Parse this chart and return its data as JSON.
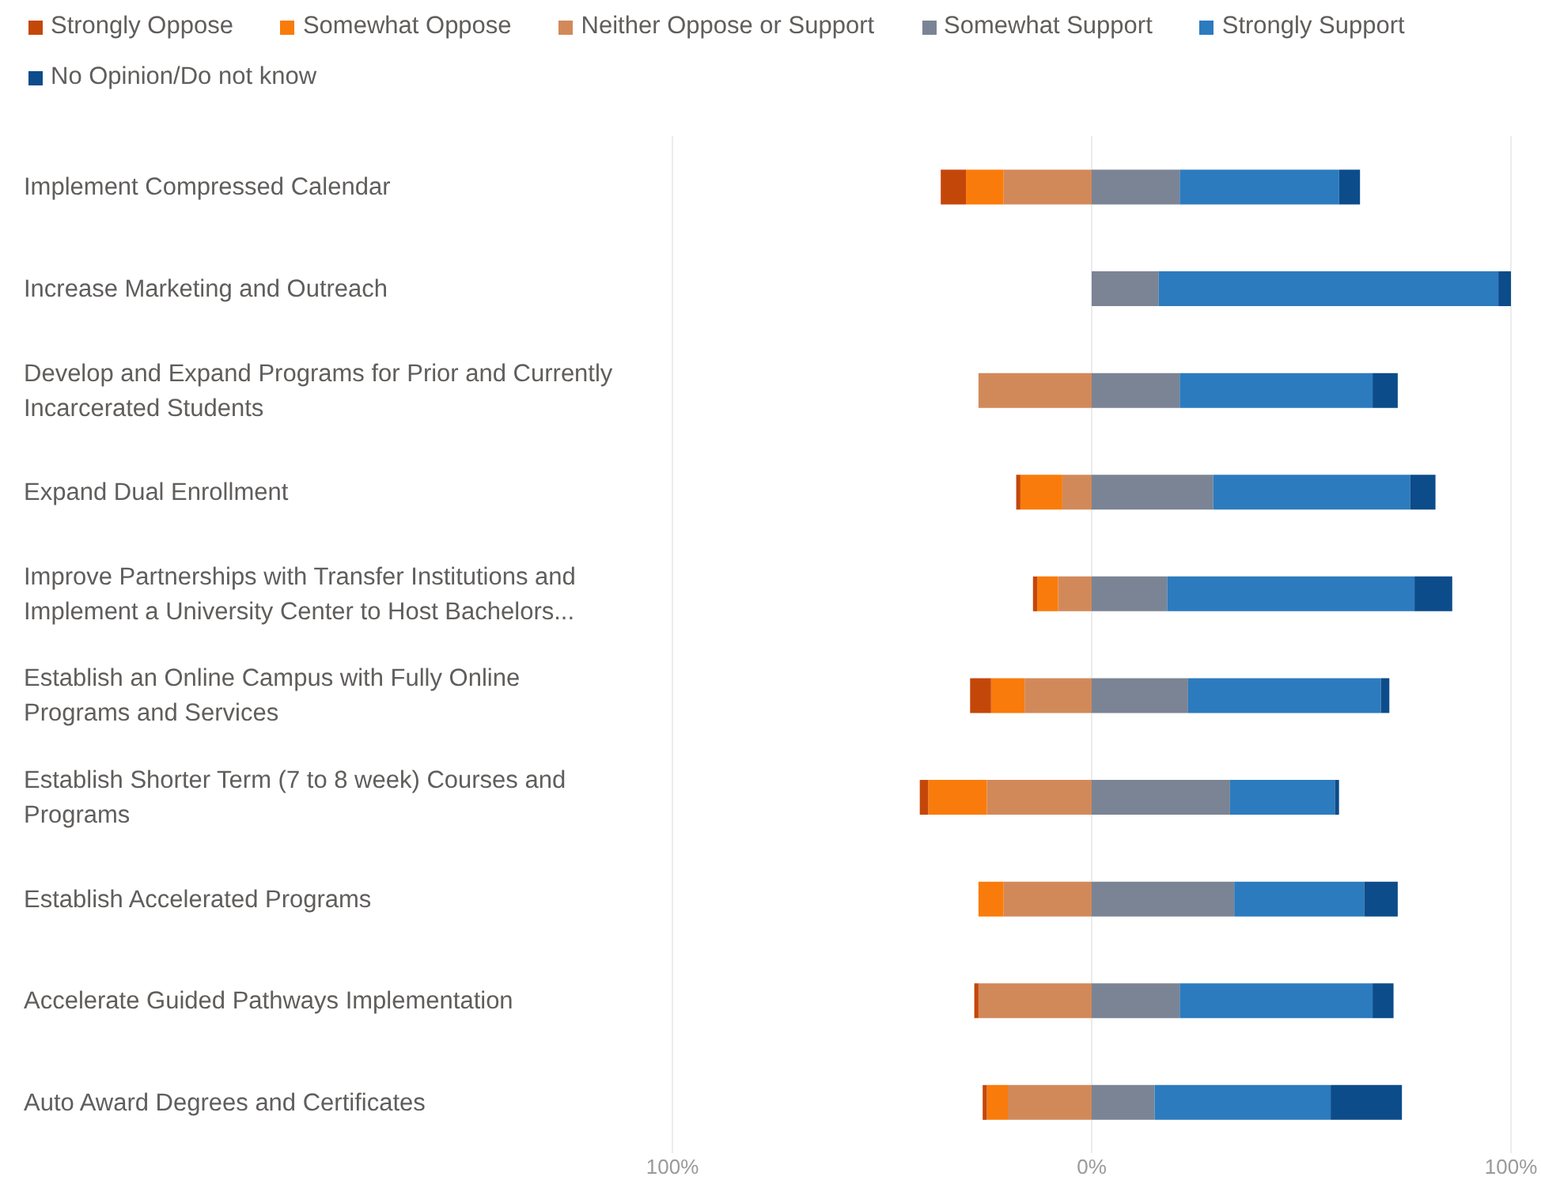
{
  "chart_data": {
    "type": "bar",
    "orientation": "horizontal",
    "stacked": true,
    "categories": [
      "Implement Compressed Calendar",
      "Increase Marketing and Outreach",
      "Develop and Expand Programs for Prior and Currently Incarcerated Students",
      "Expand Dual Enrollment",
      "Improve Partnerships with Transfer Institutions and Implement a University Center to Host Bachelors...",
      "Establish an Online Campus with Fully Online Programs and Services",
      "Establish Shorter Term (7 to 8 week) Courses and Programs",
      "Establish Accelerated Programs",
      "Accelerate Guided Pathways Implementation",
      "Auto Award Degrees and Certificates"
    ],
    "series": [
      {
        "name": "Strongly Oppose",
        "color": "#c4470a",
        "values": [
          -6,
          0,
          0,
          -1,
          -1,
          -5,
          -2,
          0,
          -1,
          -1
        ]
      },
      {
        "name": "Somewhat Oppose",
        "color": "#f97b0b",
        "values": [
          -9,
          0,
          0,
          -10,
          -5,
          -8,
          -14,
          -6,
          0,
          -5
        ]
      },
      {
        "name": "Neither Oppose or Support",
        "color": "#d2895a",
        "values": [
          -21,
          0,
          -27,
          -7,
          -8,
          -16,
          -25,
          -21,
          -27,
          -20
        ]
      },
      {
        "name": "Somewhat Support",
        "color": "#7b8494",
        "values": [
          21,
          16,
          21,
          29,
          18,
          23,
          33,
          34,
          21,
          15
        ]
      },
      {
        "name": "Strongly Support",
        "color": "#2c7bbe",
        "values": [
          38,
          81,
          46,
          47,
          59,
          46,
          25,
          31,
          46,
          42
        ]
      },
      {
        "name": "No Opinion/Do not know",
        "color": "#0c4c8a",
        "values": [
          5,
          3,
          6,
          6,
          9,
          2,
          1,
          8,
          5,
          17
        ]
      }
    ],
    "xlim": [
      -100,
      100
    ],
    "xticks": [
      {
        "value": -100,
        "label": "100%"
      },
      {
        "value": 0,
        "label": "0%"
      },
      {
        "value": 100,
        "label": "100%"
      }
    ],
    "grid": "x",
    "legend": "top left"
  }
}
